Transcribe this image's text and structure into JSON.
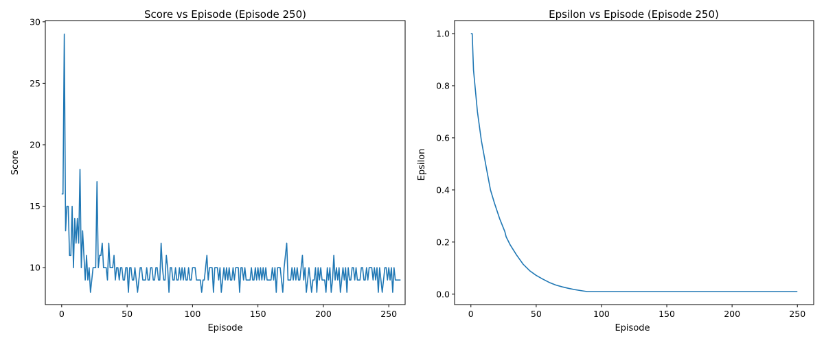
{
  "chart_data": [
    {
      "type": "line",
      "title": "Score vs Episode (Episode 250)",
      "xlabel": "Episode",
      "ylabel": "Score",
      "xlim": [
        -12.5,
        262.5
      ],
      "ylim": [
        7.0,
        30.1
      ],
      "xticks": [
        0,
        50,
        100,
        150,
        200,
        250
      ],
      "yticks": [
        10,
        15,
        20,
        25,
        30
      ],
      "grid": false,
      "color": "#1f77b4",
      "series": [
        {
          "values": [
            16,
            16,
            29,
            13,
            15,
            15,
            11,
            11,
            15,
            10,
            14,
            12,
            14,
            12,
            18,
            10,
            13,
            11,
            9,
            11,
            9,
            10,
            8,
            9,
            10,
            10,
            10,
            17,
            10,
            11,
            11,
            12,
            10,
            10,
            10,
            9,
            12,
            10,
            10,
            10,
            11,
            9,
            10,
            10,
            9,
            10,
            10,
            9,
            9,
            10,
            10,
            8,
            10,
            10,
            9,
            9,
            10,
            9,
            8,
            9,
            10,
            10,
            9,
            9,
            9,
            10,
            9,
            9,
            10,
            10,
            9,
            9,
            10,
            10,
            9,
            9,
            12,
            10,
            9,
            9,
            11,
            10,
            8,
            10,
            10,
            9,
            9,
            10,
            9,
            9,
            10,
            9,
            10,
            9,
            10,
            9,
            9,
            10,
            9,
            9,
            10,
            10,
            10,
            9,
            9,
            9,
            9,
            8,
            9,
            9,
            10,
            11,
            9,
            10,
            10,
            10,
            8,
            10,
            10,
            10,
            9,
            10,
            8,
            9,
            10,
            9,
            10,
            9,
            10,
            9,
            9,
            10,
            9,
            10,
            10,
            10,
            8,
            10,
            10,
            9,
            10,
            9,
            9,
            9,
            9,
            10,
            9,
            9,
            10,
            9,
            10,
            9,
            10,
            9,
            10,
            9,
            10,
            9,
            9,
            9,
            9,
            10,
            9,
            10,
            8,
            10,
            10,
            10,
            9,
            8,
            10,
            11,
            12,
            9,
            9,
            9,
            10,
            9,
            10,
            9,
            10,
            9,
            9,
            10,
            11,
            9,
            10,
            8,
            9,
            10,
            9,
            8,
            9,
            9,
            10,
            8,
            10,
            9,
            10,
            9,
            9,
            9,
            8,
            10,
            9,
            10,
            8,
            9,
            11,
            9,
            10,
            9,
            10,
            8,
            9,
            10,
            9,
            10,
            8,
            10,
            9,
            9,
            10,
            10,
            9,
            10,
            9,
            9,
            9,
            10,
            10,
            9,
            9,
            10,
            9,
            10,
            10,
            10,
            9,
            10,
            9,
            10,
            8,
            10,
            9,
            8,
            9,
            10,
            10,
            9,
            10,
            9,
            10,
            8,
            10,
            9,
            9,
            9,
            9,
            9
          ]
        }
      ]
    },
    {
      "type": "line",
      "title": "Epsilon vs Episode (Episode 250)",
      "xlabel": "Episode",
      "ylabel": "Epsilon",
      "xlim": [
        -12.5,
        262.5
      ],
      "ylim": [
        -0.04,
        1.05
      ],
      "xticks": [
        0,
        50,
        100,
        150,
        200,
        250
      ],
      "yticks": [
        0.0,
        0.2,
        0.4,
        0.6,
        0.8,
        1.0
      ],
      "ytick_labels": [
        "0.0",
        "0.2",
        "0.4",
        "0.6",
        "0.8",
        "1.0"
      ],
      "grid": false,
      "color": "#1f77b4",
      "decay_note_free": true,
      "series": [
        {
          "start_value": 1.0,
          "min_value": 0.01,
          "n_episodes": 250,
          "points": [
            [
              0,
              1.0
            ],
            [
              1,
              1.0
            ],
            [
              2,
              0.86
            ],
            [
              5,
              0.7
            ],
            [
              8,
              0.59
            ],
            [
              12,
              0.48
            ],
            [
              15,
              0.4
            ],
            [
              18,
              0.35
            ],
            [
              22,
              0.29
            ],
            [
              26,
              0.24
            ],
            [
              27,
              0.22
            ],
            [
              30,
              0.19
            ],
            [
              35,
              0.15
            ],
            [
              40,
              0.115
            ],
            [
              45,
              0.09
            ],
            [
              50,
              0.072
            ],
            [
              55,
              0.058
            ],
            [
              60,
              0.045
            ],
            [
              65,
              0.035
            ],
            [
              70,
              0.028
            ],
            [
              75,
              0.022
            ],
            [
              80,
              0.017
            ],
            [
              85,
              0.013
            ],
            [
              89,
              0.01
            ],
            [
              250,
              0.01
            ]
          ]
        }
      ]
    }
  ]
}
